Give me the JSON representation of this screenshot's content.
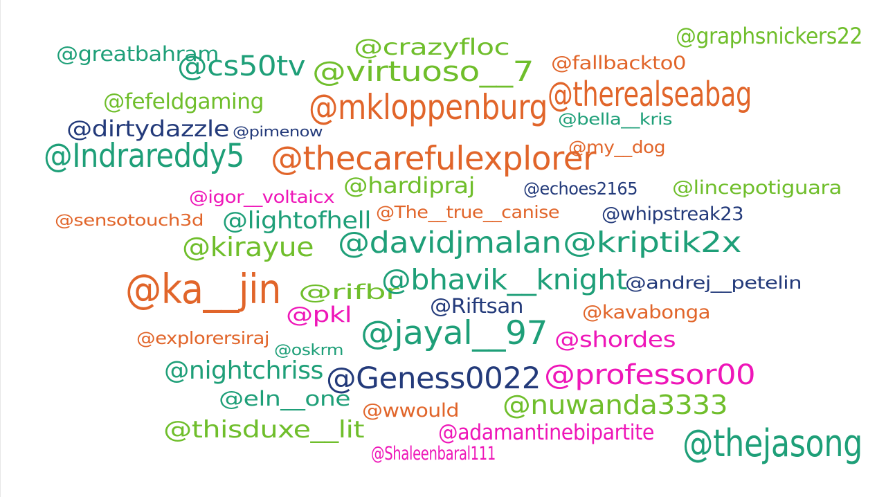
{
  "palette": {
    "green": "#1e9f78",
    "lime": "#6fbe2b",
    "orange": "#e1652a",
    "navy": "#233a7a",
    "magenta": "#ee16b8"
  },
  "words": [
    {
      "text": "@greatbahram",
      "color": "#1e9f78"
    },
    {
      "text": "@cs50tv",
      "color": "#1e9f78"
    },
    {
      "text": "@crazyfloc",
      "color": "#6fbe2b"
    },
    {
      "text": "@virtuoso__7",
      "color": "#6fbe2b"
    },
    {
      "text": "@fallbackto0",
      "color": "#e1652a"
    },
    {
      "text": "@graphsnickers22",
      "color": "#6fbe2b"
    },
    {
      "text": "@fefeldgaming",
      "color": "#6fbe2b"
    },
    {
      "text": "@mkloppenburg",
      "color": "#e1652a"
    },
    {
      "text": "@therealseabag",
      "color": "#e1652a"
    },
    {
      "text": "@bella__kris",
      "color": "#1e9f78"
    },
    {
      "text": "@dirtydazzle",
      "color": "#233a7a"
    },
    {
      "text": "@pimenow",
      "color": "#233a7a"
    },
    {
      "text": "@Indrareddy5",
      "color": "#1e9f78"
    },
    {
      "text": "@thecarefulexplorer",
      "color": "#e1652a"
    },
    {
      "text": "@my__dog",
      "color": "#e1652a"
    },
    {
      "text": "@igor__voltaicx",
      "color": "#ee16b8"
    },
    {
      "text": "@hardipraj",
      "color": "#6fbe2b"
    },
    {
      "text": "@echoes2165",
      "color": "#233a7a"
    },
    {
      "text": "@lincepotiguara",
      "color": "#6fbe2b"
    },
    {
      "text": "@sensotouch3d",
      "color": "#e1652a"
    },
    {
      "text": "@lightofhell",
      "color": "#1e9f78"
    },
    {
      "text": "@The__true__canise",
      "color": "#e1652a"
    },
    {
      "text": "@whipstreak23",
      "color": "#233a7a"
    },
    {
      "text": "@kirayue",
      "color": "#6fbe2b"
    },
    {
      "text": "@davidjmalan",
      "color": "#1e9f78"
    },
    {
      "text": "@kriptik2x",
      "color": "#1e9f78"
    },
    {
      "text": "@ka__jin",
      "color": "#e1652a"
    },
    {
      "text": "@rifbr",
      "color": "#6fbe2b"
    },
    {
      "text": "@bhavik__knight",
      "color": "#1e9f78"
    },
    {
      "text": "@andrej__petelin",
      "color": "#233a7a"
    },
    {
      "text": "@Riftsan",
      "color": "#233a7a"
    },
    {
      "text": "@kavabonga",
      "color": "#e1652a"
    },
    {
      "text": "@pkl",
      "color": "#ee16b8"
    },
    {
      "text": "@explorersiraj",
      "color": "#e1652a"
    },
    {
      "text": "@oskrm",
      "color": "#1e9f78"
    },
    {
      "text": "@jayal__97",
      "color": "#1e9f78"
    },
    {
      "text": "@shordes",
      "color": "#ee16b8"
    },
    {
      "text": "@nightchriss",
      "color": "#1e9f78"
    },
    {
      "text": "@Geness0022",
      "color": "#233a7a"
    },
    {
      "text": "@professor00",
      "color": "#ee16b8"
    },
    {
      "text": "@eln__one",
      "color": "#1e9f78"
    },
    {
      "text": "@wwould",
      "color": "#e1652a"
    },
    {
      "text": "@nuwanda3333",
      "color": "#6fbe2b"
    },
    {
      "text": "@thisduxe__lit",
      "color": "#6fbe2b"
    },
    {
      "text": "@adamantinebipartite",
      "color": "#ee16b8"
    },
    {
      "text": "@thejasong",
      "color": "#1e9f78"
    },
    {
      "text": "@Shaleenbaral111",
      "color": "#ee16b8"
    }
  ]
}
